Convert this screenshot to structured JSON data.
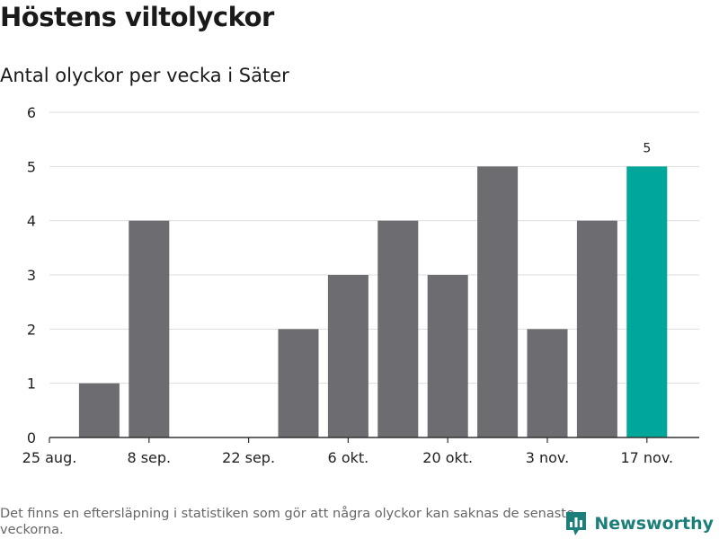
{
  "title": "Höstens viltolyckor",
  "subtitle": "Antal olyckor per vecka i Säter",
  "footnote": "Det finns en eftersläpning i statistiken som gör att några olyckor kan saknas de senaste veckorna.",
  "brand": {
    "name": "Newsworthy",
    "icon": "newsworthy-logo-icon",
    "color": "#1d7f7a"
  },
  "chart_data": {
    "type": "bar",
    "categories": [
      "25 aug.",
      "1 sep.",
      "8 sep.",
      "15 sep.",
      "22 sep.",
      "29 sep.",
      "6 okt.",
      "13 okt.",
      "20 okt.",
      "27 okt.",
      "3 nov.",
      "10 nov.",
      "17 nov."
    ],
    "values": [
      0,
      1,
      4,
      0,
      0,
      2,
      3,
      4,
      3,
      5,
      2,
      4,
      5
    ],
    "x_tick_labels": [
      "25 aug.",
      "8 sep.",
      "22 sep.",
      "6 okt.",
      "20 okt.",
      "3 nov.",
      "17 nov."
    ],
    "y_ticks": [
      0,
      1,
      2,
      3,
      4,
      5,
      6
    ],
    "ylim": [
      0,
      6
    ],
    "xlabel": "",
    "ylabel": "",
    "grid": true,
    "highlight_index": 12,
    "data_labels": [
      {
        "index": 12,
        "text": "5"
      }
    ],
    "colors": {
      "bar": "#6d6c71",
      "highlight": "#00a699",
      "grid": "#dddddd",
      "axis": "#333333"
    }
  }
}
